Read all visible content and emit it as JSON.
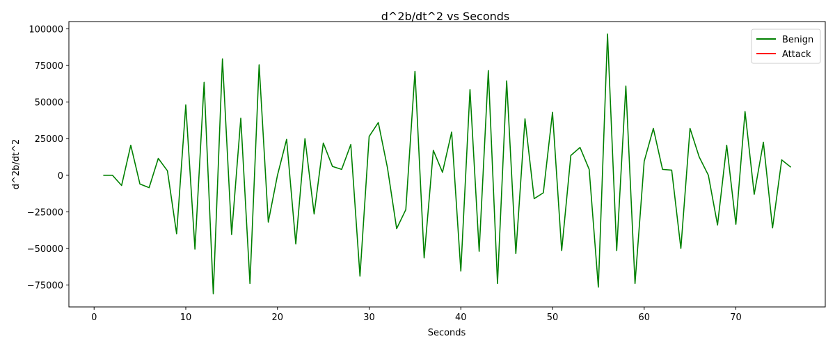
{
  "chart_data": {
    "type": "line",
    "title": "d^2b/dt^2 vs Seconds",
    "xlabel": "Seconds",
    "ylabel": "d^2b/dt^2",
    "xlim": [
      -2.75,
      79.75
    ],
    "ylim": [
      -90000,
      105000
    ],
    "xticks": [
      0,
      10,
      20,
      30,
      40,
      50,
      60,
      70
    ],
    "yticks": [
      -75000,
      -50000,
      -25000,
      0,
      25000,
      50000,
      75000,
      100000
    ],
    "grid": false,
    "legend_position": "top-right",
    "series": [
      {
        "name": "Benign",
        "color": "#008000",
        "x": [
          1,
          2,
          3,
          4,
          5,
          6,
          7,
          8,
          9,
          10,
          11,
          12,
          13,
          14,
          15,
          16,
          17,
          18,
          19,
          20,
          21,
          22,
          23,
          24,
          25,
          26,
          27,
          28,
          29,
          30,
          31,
          32,
          33,
          34,
          35,
          36,
          37,
          38,
          39,
          40,
          41,
          42,
          43,
          44,
          45,
          46,
          47,
          48,
          49,
          50,
          51,
          52,
          53,
          54,
          55,
          56,
          57,
          58,
          59,
          60,
          61,
          62,
          63,
          64,
          65,
          66,
          67,
          68,
          69,
          70,
          71,
          72,
          73,
          74,
          75,
          76
        ],
        "y": [
          0,
          0,
          -7000,
          20500,
          -6000,
          -8500,
          11500,
          3000,
          -40000,
          48000,
          -50500,
          63500,
          -81000,
          79500,
          -40500,
          39000,
          -74000,
          75500,
          -32000,
          0,
          24500,
          -47000,
          25000,
          -26500,
          22000,
          6000,
          4000,
          21000,
          -69000,
          26500,
          36000,
          5000,
          -36500,
          -23500,
          71000,
          -56500,
          17000,
          2000,
          29500,
          -65500,
          58500,
          -52000,
          71500,
          -74000,
          64500,
          -53500,
          38500,
          -16000,
          -12000,
          43000,
          -51500,
          13500,
          19000,
          4000,
          -76500,
          96500,
          -51500,
          61000,
          -74000,
          9500,
          32000,
          4000,
          3500,
          -50000,
          32000,
          12500,
          0,
          -34000,
          20500,
          -33500,
          43500,
          -13000,
          22500,
          -36000,
          10500,
          5500
        ]
      },
      {
        "name": "Attack",
        "color": "#ff0000",
        "x": [],
        "y": []
      }
    ]
  }
}
